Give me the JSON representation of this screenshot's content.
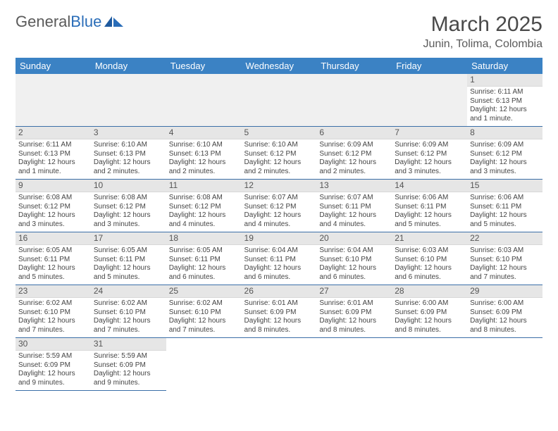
{
  "logo": {
    "text1": "General",
    "text2": "Blue"
  },
  "title": "March 2025",
  "location": "Junin, Tolima, Colombia",
  "colors": {
    "header_bg": "#3b82c4",
    "header_fg": "#ffffff",
    "daynum_bg": "#e6e6e6",
    "row_divider": "#3b6fa8",
    "logo_blue": "#2a6db8",
    "text": "#444444"
  },
  "weekdays": [
    "Sunday",
    "Monday",
    "Tuesday",
    "Wednesday",
    "Thursday",
    "Friday",
    "Saturday"
  ],
  "weeks": [
    [
      null,
      null,
      null,
      null,
      null,
      null,
      {
        "n": "1",
        "sr": "Sunrise: 6:11 AM",
        "ss": "Sunset: 6:13 PM",
        "dl": "Daylight: 12 hours and 1 minute."
      }
    ],
    [
      {
        "n": "2",
        "sr": "Sunrise: 6:11 AM",
        "ss": "Sunset: 6:13 PM",
        "dl": "Daylight: 12 hours and 1 minute."
      },
      {
        "n": "3",
        "sr": "Sunrise: 6:10 AM",
        "ss": "Sunset: 6:13 PM",
        "dl": "Daylight: 12 hours and 2 minutes."
      },
      {
        "n": "4",
        "sr": "Sunrise: 6:10 AM",
        "ss": "Sunset: 6:13 PM",
        "dl": "Daylight: 12 hours and 2 minutes."
      },
      {
        "n": "5",
        "sr": "Sunrise: 6:10 AM",
        "ss": "Sunset: 6:12 PM",
        "dl": "Daylight: 12 hours and 2 minutes."
      },
      {
        "n": "6",
        "sr": "Sunrise: 6:09 AM",
        "ss": "Sunset: 6:12 PM",
        "dl": "Daylight: 12 hours and 2 minutes."
      },
      {
        "n": "7",
        "sr": "Sunrise: 6:09 AM",
        "ss": "Sunset: 6:12 PM",
        "dl": "Daylight: 12 hours and 3 minutes."
      },
      {
        "n": "8",
        "sr": "Sunrise: 6:09 AM",
        "ss": "Sunset: 6:12 PM",
        "dl": "Daylight: 12 hours and 3 minutes."
      }
    ],
    [
      {
        "n": "9",
        "sr": "Sunrise: 6:08 AM",
        "ss": "Sunset: 6:12 PM",
        "dl": "Daylight: 12 hours and 3 minutes."
      },
      {
        "n": "10",
        "sr": "Sunrise: 6:08 AM",
        "ss": "Sunset: 6:12 PM",
        "dl": "Daylight: 12 hours and 3 minutes."
      },
      {
        "n": "11",
        "sr": "Sunrise: 6:08 AM",
        "ss": "Sunset: 6:12 PM",
        "dl": "Daylight: 12 hours and 4 minutes."
      },
      {
        "n": "12",
        "sr": "Sunrise: 6:07 AM",
        "ss": "Sunset: 6:12 PM",
        "dl": "Daylight: 12 hours and 4 minutes."
      },
      {
        "n": "13",
        "sr": "Sunrise: 6:07 AM",
        "ss": "Sunset: 6:11 PM",
        "dl": "Daylight: 12 hours and 4 minutes."
      },
      {
        "n": "14",
        "sr": "Sunrise: 6:06 AM",
        "ss": "Sunset: 6:11 PM",
        "dl": "Daylight: 12 hours and 5 minutes."
      },
      {
        "n": "15",
        "sr": "Sunrise: 6:06 AM",
        "ss": "Sunset: 6:11 PM",
        "dl": "Daylight: 12 hours and 5 minutes."
      }
    ],
    [
      {
        "n": "16",
        "sr": "Sunrise: 6:05 AM",
        "ss": "Sunset: 6:11 PM",
        "dl": "Daylight: 12 hours and 5 minutes."
      },
      {
        "n": "17",
        "sr": "Sunrise: 6:05 AM",
        "ss": "Sunset: 6:11 PM",
        "dl": "Daylight: 12 hours and 5 minutes."
      },
      {
        "n": "18",
        "sr": "Sunrise: 6:05 AM",
        "ss": "Sunset: 6:11 PM",
        "dl": "Daylight: 12 hours and 6 minutes."
      },
      {
        "n": "19",
        "sr": "Sunrise: 6:04 AM",
        "ss": "Sunset: 6:11 PM",
        "dl": "Daylight: 12 hours and 6 minutes."
      },
      {
        "n": "20",
        "sr": "Sunrise: 6:04 AM",
        "ss": "Sunset: 6:10 PM",
        "dl": "Daylight: 12 hours and 6 minutes."
      },
      {
        "n": "21",
        "sr": "Sunrise: 6:03 AM",
        "ss": "Sunset: 6:10 PM",
        "dl": "Daylight: 12 hours and 6 minutes."
      },
      {
        "n": "22",
        "sr": "Sunrise: 6:03 AM",
        "ss": "Sunset: 6:10 PM",
        "dl": "Daylight: 12 hours and 7 minutes."
      }
    ],
    [
      {
        "n": "23",
        "sr": "Sunrise: 6:02 AM",
        "ss": "Sunset: 6:10 PM",
        "dl": "Daylight: 12 hours and 7 minutes."
      },
      {
        "n": "24",
        "sr": "Sunrise: 6:02 AM",
        "ss": "Sunset: 6:10 PM",
        "dl": "Daylight: 12 hours and 7 minutes."
      },
      {
        "n": "25",
        "sr": "Sunrise: 6:02 AM",
        "ss": "Sunset: 6:10 PM",
        "dl": "Daylight: 12 hours and 7 minutes."
      },
      {
        "n": "26",
        "sr": "Sunrise: 6:01 AM",
        "ss": "Sunset: 6:09 PM",
        "dl": "Daylight: 12 hours and 8 minutes."
      },
      {
        "n": "27",
        "sr": "Sunrise: 6:01 AM",
        "ss": "Sunset: 6:09 PM",
        "dl": "Daylight: 12 hours and 8 minutes."
      },
      {
        "n": "28",
        "sr": "Sunrise: 6:00 AM",
        "ss": "Sunset: 6:09 PM",
        "dl": "Daylight: 12 hours and 8 minutes."
      },
      {
        "n": "29",
        "sr": "Sunrise: 6:00 AM",
        "ss": "Sunset: 6:09 PM",
        "dl": "Daylight: 12 hours and 8 minutes."
      }
    ],
    [
      {
        "n": "30",
        "sr": "Sunrise: 5:59 AM",
        "ss": "Sunset: 6:09 PM",
        "dl": "Daylight: 12 hours and 9 minutes."
      },
      {
        "n": "31",
        "sr": "Sunrise: 5:59 AM",
        "ss": "Sunset: 6:09 PM",
        "dl": "Daylight: 12 hours and 9 minutes."
      },
      null,
      null,
      null,
      null,
      null
    ]
  ]
}
